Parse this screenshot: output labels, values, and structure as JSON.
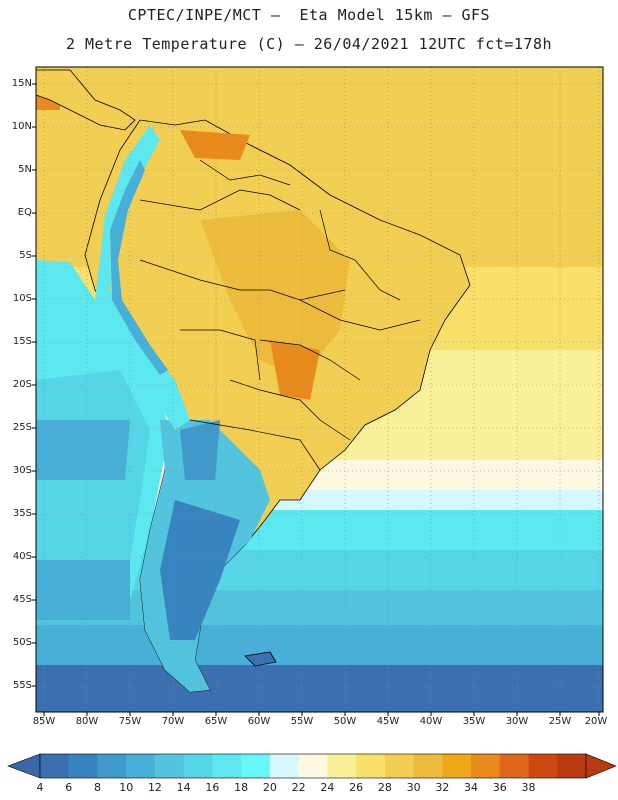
{
  "title_line1": "CPTEC/INPE/MCT –  Eta Model 15km – GFS",
  "title_line2": "2 Metre Temperature (C) – 26/04/2021 12UTC fct=178h",
  "lat_labels": [
    "15N",
    "10N",
    "5N",
    "EQ",
    "5S",
    "10S",
    "15S",
    "20S",
    "25S",
    "30S",
    "35S",
    "40S",
    "45S",
    "50S",
    "55S"
  ],
  "lon_labels": [
    "85W",
    "80W",
    "75W",
    "70W",
    "65W",
    "60W",
    "55W",
    "50W",
    "45W",
    "40W",
    "35W",
    "30W",
    "25W",
    "20W"
  ],
  "colorbar": {
    "labels": [
      "4",
      "6",
      "8",
      "10",
      "12",
      "14",
      "16",
      "18",
      "20",
      "22",
      "24",
      "26",
      "28",
      "30",
      "32",
      "34",
      "36",
      "38"
    ],
    "colors": [
      "#3c6fb0",
      "#3884c0",
      "#3f9acb",
      "#48b0d8",
      "#52c4de",
      "#55d6e6",
      "#5ce8ee",
      "#66f8f8",
      "#d7f7ff",
      "#fdf8e2",
      "#fbf09a",
      "#f8e06a",
      "#f2cf52",
      "#eebc3c",
      "#f0a81a",
      "#e88a1c",
      "#e0681a",
      "#cc4712",
      "#b83a0e"
    ],
    "low_arrow_color": "#3a67a9",
    "high_arrow_color": "#b83a0e"
  }
}
